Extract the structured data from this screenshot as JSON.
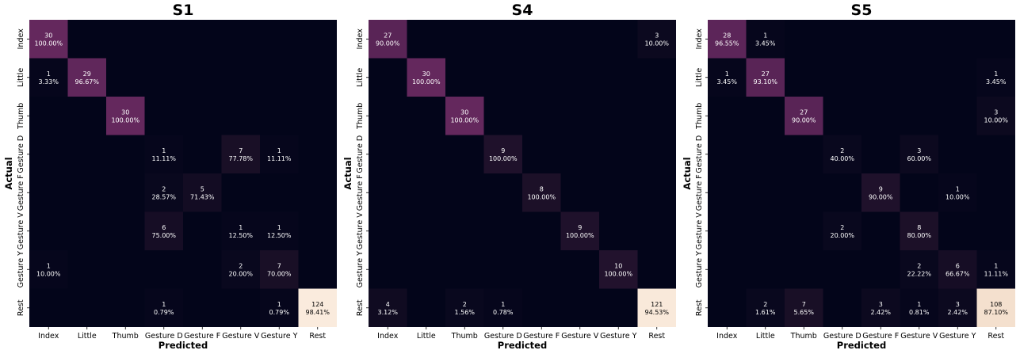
{
  "chart_data": [
    {
      "type": "heatmap",
      "title": "S1",
      "xlabel": "Predicted",
      "ylabel": "Actual",
      "categories": [
        "Index",
        "Little",
        "Thumb",
        "Gesture D",
        "Gesture F",
        "Gesture V",
        "Gesture Y",
        "Rest"
      ],
      "cells": [
        {
          "row": 0,
          "col": 0,
          "count": "30",
          "pct": "100.00%",
          "value": 100.0
        },
        {
          "row": 1,
          "col": 0,
          "count": "1",
          "pct": "3.33%",
          "value": 3.33
        },
        {
          "row": 1,
          "col": 1,
          "count": "29",
          "pct": "96.67%",
          "value": 96.67
        },
        {
          "row": 2,
          "col": 2,
          "count": "30",
          "pct": "100.00%",
          "value": 100.0
        },
        {
          "row": 3,
          "col": 3,
          "count": "1",
          "pct": "11.11%",
          "value": 11.11
        },
        {
          "row": 3,
          "col": 5,
          "count": "7",
          "pct": "77.78%",
          "value": 77.78
        },
        {
          "row": 3,
          "col": 6,
          "count": "1",
          "pct": "11.11%",
          "value": 11.11
        },
        {
          "row": 4,
          "col": 3,
          "count": "2",
          "pct": "28.57%",
          "value": 28.57
        },
        {
          "row": 4,
          "col": 4,
          "count": "5",
          "pct": "71.43%",
          "value": 71.43
        },
        {
          "row": 5,
          "col": 3,
          "count": "6",
          "pct": "75.00%",
          "value": 75.0
        },
        {
          "row": 5,
          "col": 5,
          "count": "1",
          "pct": "12.50%",
          "value": 12.5
        },
        {
          "row": 5,
          "col": 6,
          "count": "1",
          "pct": "12.50%",
          "value": 12.5
        },
        {
          "row": 6,
          "col": 0,
          "count": "1",
          "pct": "10.00%",
          "value": 10.0
        },
        {
          "row": 6,
          "col": 5,
          "count": "2",
          "pct": "20.00%",
          "value": 20.0
        },
        {
          "row": 6,
          "col": 6,
          "count": "7",
          "pct": "70.00%",
          "value": 70.0
        },
        {
          "row": 7,
          "col": 3,
          "count": "1",
          "pct": "0.79%",
          "value": 0.79
        },
        {
          "row": 7,
          "col": 6,
          "count": "1",
          "pct": "0.79%",
          "value": 0.79
        },
        {
          "row": 7,
          "col": 7,
          "count": "124",
          "pct": "98.41%",
          "value": 98.41
        }
      ]
    },
    {
      "type": "heatmap",
      "title": "S4",
      "xlabel": "Predicted",
      "ylabel": "Actual",
      "categories": [
        "Index",
        "Little",
        "Thumb",
        "Gesture D",
        "Gesture F",
        "Gesture V",
        "Gesture Y",
        "Rest"
      ],
      "cells": [
        {
          "row": 0,
          "col": 0,
          "count": "27",
          "pct": "90.00%",
          "value": 90.0
        },
        {
          "row": 0,
          "col": 7,
          "count": "3",
          "pct": "10.00%",
          "value": 10.0
        },
        {
          "row": 1,
          "col": 1,
          "count": "30",
          "pct": "100.00%",
          "value": 100.0
        },
        {
          "row": 2,
          "col": 2,
          "count": "30",
          "pct": "100.00%",
          "value": 100.0
        },
        {
          "row": 3,
          "col": 3,
          "count": "9",
          "pct": "100.00%",
          "value": 100.0
        },
        {
          "row": 4,
          "col": 4,
          "count": "8",
          "pct": "100.00%",
          "value": 100.0
        },
        {
          "row": 5,
          "col": 5,
          "count": "9",
          "pct": "100.00%",
          "value": 100.0
        },
        {
          "row": 6,
          "col": 6,
          "count": "10",
          "pct": "100.00%",
          "value": 100.0
        },
        {
          "row": 7,
          "col": 0,
          "count": "4",
          "pct": "3.12%",
          "value": 3.12
        },
        {
          "row": 7,
          "col": 2,
          "count": "2",
          "pct": "1.56%",
          "value": 1.56
        },
        {
          "row": 7,
          "col": 3,
          "count": "1",
          "pct": "0.78%",
          "value": 0.78
        },
        {
          "row": 7,
          "col": 7,
          "count": "121",
          "pct": "94.53%",
          "value": 94.53
        }
      ]
    },
    {
      "type": "heatmap",
      "title": "S5",
      "xlabel": "Predicted",
      "ylabel": "Actual",
      "categories": [
        "Index",
        "Little",
        "Thumb",
        "Gesture D",
        "Gesture F",
        "Gesture V",
        "Gesture Y",
        "Rest"
      ],
      "cells": [
        {
          "row": 0,
          "col": 0,
          "count": "28",
          "pct": "96.55%",
          "value": 96.55
        },
        {
          "row": 0,
          "col": 1,
          "count": "1",
          "pct": "3.45%",
          "value": 3.45
        },
        {
          "row": 1,
          "col": 0,
          "count": "1",
          "pct": "3.45%",
          "value": 3.45
        },
        {
          "row": 1,
          "col": 1,
          "count": "27",
          "pct": "93.10%",
          "value": 93.1
        },
        {
          "row": 1,
          "col": 7,
          "count": "1",
          "pct": "3.45%",
          "value": 3.45
        },
        {
          "row": 2,
          "col": 2,
          "count": "27",
          "pct": "90.00%",
          "value": 90.0
        },
        {
          "row": 2,
          "col": 7,
          "count": "3",
          "pct": "10.00%",
          "value": 10.0
        },
        {
          "row": 3,
          "col": 3,
          "count": "2",
          "pct": "40.00%",
          "value": 40.0
        },
        {
          "row": 3,
          "col": 5,
          "count": "3",
          "pct": "60.00%",
          "value": 60.0
        },
        {
          "row": 4,
          "col": 4,
          "count": "9",
          "pct": "90.00%",
          "value": 90.0
        },
        {
          "row": 4,
          "col": 6,
          "count": "1",
          "pct": "10.00%",
          "value": 10.0
        },
        {
          "row": 5,
          "col": 3,
          "count": "2",
          "pct": "20.00%",
          "value": 20.0
        },
        {
          "row": 5,
          "col": 5,
          "count": "8",
          "pct": "80.00%",
          "value": 80.0
        },
        {
          "row": 6,
          "col": 5,
          "count": "2",
          "pct": "22.22%",
          "value": 22.22
        },
        {
          "row": 6,
          "col": 6,
          "count": "6",
          "pct": "66.67%",
          "value": 66.67
        },
        {
          "row": 6,
          "col": 7,
          "count": "1",
          "pct": "11.11%",
          "value": 11.11
        },
        {
          "row": 7,
          "col": 1,
          "count": "2",
          "pct": "1.61%",
          "value": 1.61
        },
        {
          "row": 7,
          "col": 2,
          "count": "7",
          "pct": "5.65%",
          "value": 5.65
        },
        {
          "row": 7,
          "col": 4,
          "count": "3",
          "pct": "2.42%",
          "value": 2.42
        },
        {
          "row": 7,
          "col": 5,
          "count": "1",
          "pct": "0.81%",
          "value": 0.81
        },
        {
          "row": 7,
          "col": 6,
          "count": "3",
          "pct": "2.42%",
          "value": 2.42
        },
        {
          "row": 7,
          "col": 7,
          "count": "108",
          "pct": "87.10%",
          "value": 87.1
        }
      ]
    }
  ],
  "colors": {
    "scale": [
      "#03051a",
      "#1c1028",
      "#3f1c46",
      "#6b2a62",
      "#f1dbc7",
      "#faebdd"
    ],
    "cell_text": "#ffffff",
    "light_cell_text": "#000000",
    "axis_text": "#000000"
  }
}
